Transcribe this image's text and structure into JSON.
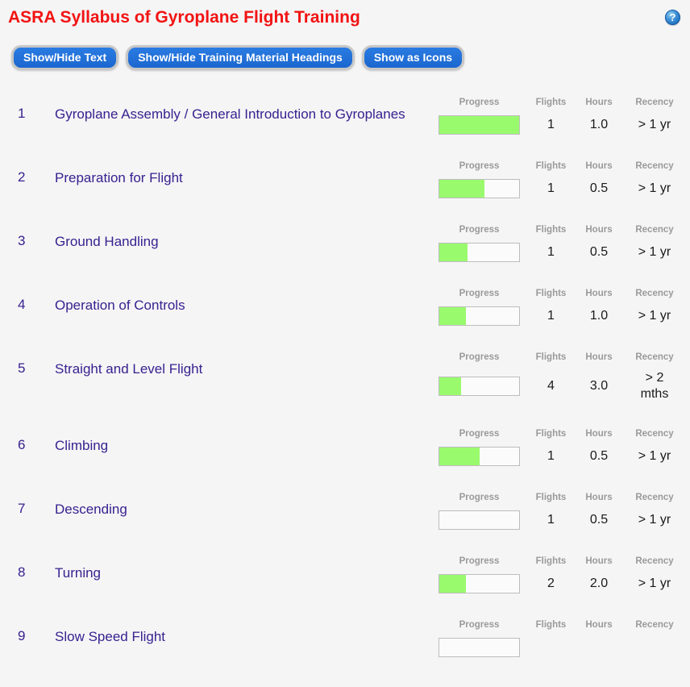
{
  "page": {
    "title": "ASRA Syllabus of Gyroplane Flight Training",
    "help_icon_glyph": "?"
  },
  "toolbar": {
    "buttons": [
      {
        "label": "Show/Hide Text"
      },
      {
        "label": "Show/Hide Training Material Headings"
      },
      {
        "label": "Show as Icons"
      }
    ]
  },
  "columns": {
    "progress": "Progress",
    "flights": "Flights",
    "hours": "Hours",
    "recency": "Recency"
  },
  "colors": {
    "title_red": "#f21313",
    "item_purple": "#38218f",
    "button_blue": "#1e70da",
    "progress_green": "#9afa6e"
  },
  "items": [
    {
      "number": "1",
      "title": "Gyroplane Assembly / General Introduction to Gyroplanes",
      "progress_pct": 100,
      "flights": "1",
      "hours": "1.0",
      "recency": "> 1 yr"
    },
    {
      "number": "2",
      "title": "Preparation for Flight",
      "progress_pct": 57,
      "flights": "1",
      "hours": "0.5",
      "recency": "> 1 yr"
    },
    {
      "number": "3",
      "title": "Ground Handling",
      "progress_pct": 35,
      "flights": "1",
      "hours": "0.5",
      "recency": "> 1 yr"
    },
    {
      "number": "4",
      "title": "Operation of Controls",
      "progress_pct": 33,
      "flights": "1",
      "hours": "1.0",
      "recency": "> 1 yr"
    },
    {
      "number": "5",
      "title": "Straight and Level Flight",
      "progress_pct": 27,
      "flights": "4",
      "hours": "3.0",
      "recency": "> 2 mths"
    },
    {
      "number": "6",
      "title": "Climbing",
      "progress_pct": 50,
      "flights": "1",
      "hours": "0.5",
      "recency": "> 1 yr"
    },
    {
      "number": "7",
      "title": "Descending",
      "progress_pct": 0,
      "flights": "1",
      "hours": "0.5",
      "recency": "> 1 yr"
    },
    {
      "number": "8",
      "title": "Turning",
      "progress_pct": 33,
      "flights": "2",
      "hours": "2.0",
      "recency": "> 1 yr"
    },
    {
      "number": "9",
      "title": "Slow Speed Flight",
      "progress_pct": 0,
      "flights": "",
      "hours": "",
      "recency": ""
    }
  ]
}
